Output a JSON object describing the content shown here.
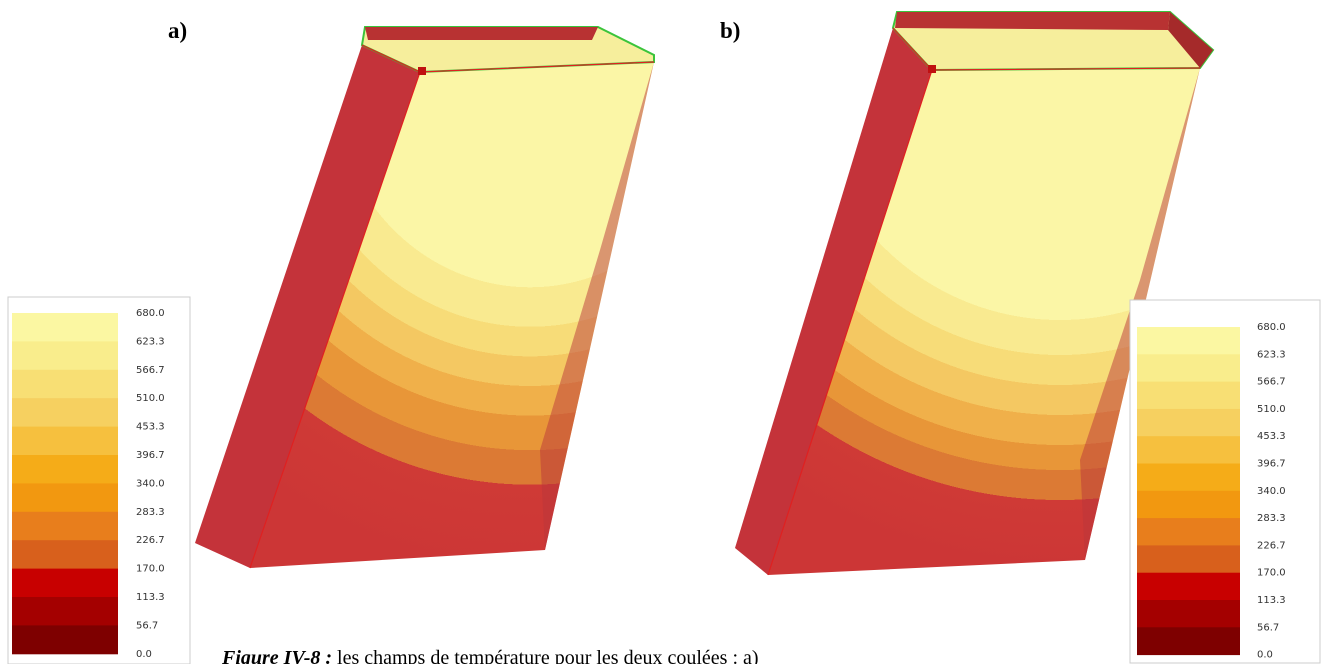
{
  "panels": [
    {
      "label": "a)",
      "legend": [
        "680.0",
        "623.3",
        "566.7",
        "510.0",
        "453.3",
        "396.7",
        "340.0",
        "283.3",
        "226.7",
        "170.0",
        "113.3",
        "56.7",
        "0.0"
      ]
    },
    {
      "label": "b)",
      "legend": [
        "680.0",
        "623.3",
        "566.7",
        "510.0",
        "453.3",
        "396.7",
        "340.0",
        "283.3",
        "226.7",
        "170.0",
        "113.3",
        "56.7",
        "0.0"
      ]
    }
  ],
  "caption": {
    "title": "Figure IV-8 :",
    "text": "les champs de température pour les deux coulées : a)"
  }
}
